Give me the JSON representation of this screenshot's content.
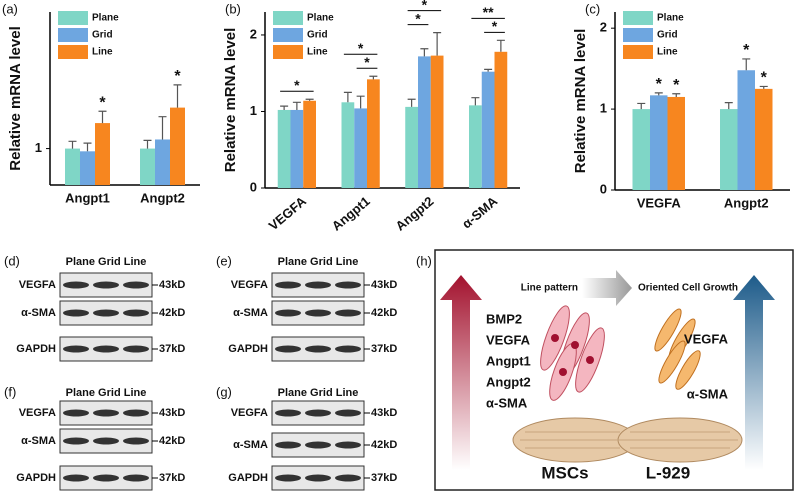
{
  "chart_data": [
    {
      "type": "bar",
      "panel_label": "(a)",
      "y_label": "Relative mRNA level",
      "categories": [
        "Angpt1",
        "Angpt2"
      ],
      "ylim": [
        0.6,
        2.5
      ],
      "yticks": [
        1
      ],
      "series": [
        {
          "name": "Plane",
          "color": "#7fd6c6",
          "values": [
            1.0,
            1.0
          ],
          "errors": [
            0.08,
            0.09
          ],
          "significance": [
            null,
            null
          ]
        },
        {
          "name": "Grid",
          "color": "#6ea6e0",
          "values": [
            0.97,
            1.1
          ],
          "errors": [
            0.09,
            0.25
          ],
          "significance": [
            null,
            null
          ]
        },
        {
          "name": "Line",
          "color": "#f7861f",
          "values": [
            1.28,
            1.45
          ],
          "errors": [
            0.13,
            0.25
          ],
          "significance": [
            "*",
            "*"
          ]
        }
      ]
    },
    {
      "type": "bar",
      "panel_label": "(b)",
      "y_label": "Relative mRNA level",
      "categories": [
        "VEGFA",
        "Angpt1",
        "Angpt2",
        "α-SMA"
      ],
      "ylim": [
        0,
        2.3
      ],
      "yticks": [
        0,
        1,
        2
      ],
      "series": [
        {
          "name": "Plane",
          "color": "#7fd6c6",
          "values": [
            1.02,
            1.12,
            1.06,
            1.08
          ],
          "errors": [
            0.05,
            0.13,
            0.1,
            0.1
          ]
        },
        {
          "name": "Grid",
          "color": "#6ea6e0",
          "values": [
            1.02,
            1.04,
            1.72,
            1.52
          ],
          "errors": [
            0.1,
            0.16,
            0.1,
            0.03
          ]
        },
        {
          "name": "Line",
          "color": "#f7861f",
          "values": [
            1.14,
            1.42,
            1.73,
            1.78
          ],
          "errors": [
            0.02,
            0.04,
            0.3,
            0.15
          ]
        }
      ],
      "comparisons": [
        {
          "group": "VEGFA",
          "from": "Plane",
          "to": "Line",
          "label": "*"
        },
        {
          "group": "Angpt1",
          "from": "Grid",
          "to": "Line",
          "label": "*"
        },
        {
          "group": "Angpt1",
          "from": "Plane",
          "to": "Line",
          "label": "*"
        },
        {
          "group": "Angpt2",
          "from": "Plane",
          "to": "Grid",
          "label": "*"
        },
        {
          "group": "Angpt2",
          "from": "Plane",
          "to": "Line",
          "label": "*"
        },
        {
          "group": "α-SMA",
          "from": "Grid",
          "to": "Line",
          "label": "*"
        },
        {
          "group": "α-SMA",
          "from": "Plane",
          "to": "Line",
          "label": "**"
        }
      ]
    },
    {
      "type": "bar",
      "panel_label": "(c)",
      "y_label": "Relative mRNA level",
      "categories": [
        "VEGFA",
        "Angpt2"
      ],
      "ylim": [
        0,
        2.2
      ],
      "yticks": [
        0,
        1,
        2
      ],
      "series": [
        {
          "name": "Plane",
          "color": "#7fd6c6",
          "values": [
            1.0,
            1.0
          ],
          "errors": [
            0.07,
            0.08
          ],
          "significance": [
            null,
            null
          ]
        },
        {
          "name": "Grid",
          "color": "#6ea6e0",
          "values": [
            1.17,
            1.48
          ],
          "errors": [
            0.03,
            0.14
          ],
          "significance": [
            "*",
            "*"
          ]
        },
        {
          "name": "Line",
          "color": "#f7861f",
          "values": [
            1.15,
            1.25
          ],
          "errors": [
            0.04,
            0.03
          ],
          "significance": [
            "*",
            "*"
          ]
        }
      ]
    }
  ],
  "blots": [
    {
      "panel_label": "(d)",
      "lanes": "Plane Grid Line",
      "rows": [
        {
          "name": "VEGFA",
          "size": "43kD"
        },
        {
          "name": "α-SMA",
          "size": "42kD"
        },
        {
          "name": "GAPDH",
          "size": "37kD"
        }
      ]
    },
    {
      "panel_label": "(e)",
      "lanes": "Plane Grid Line",
      "rows": [
        {
          "name": "VEGFA",
          "size": "43kD"
        },
        {
          "name": "α-SMA",
          "size": "42kD"
        },
        {
          "name": "GAPDH",
          "size": "37kD"
        }
      ]
    },
    {
      "panel_label": "(f)",
      "lanes": "Plane Grid Line",
      "rows": [
        {
          "name": "VEGFA",
          "size": "43kD"
        },
        {
          "name": "α-SMA",
          "size": "42kD"
        },
        {
          "name": "GAPDH",
          "size": "37kD"
        }
      ]
    },
    {
      "panel_label": "(g)",
      "lanes": "Plane Grid Line",
      "rows": [
        {
          "name": "VEGFA",
          "size": "43kD"
        },
        {
          "name": "α-SMA",
          "size": "42kD"
        },
        {
          "name": "GAPDH",
          "size": "37kD"
        }
      ]
    }
  ],
  "diagram": {
    "panel_label": "(h)",
    "left_caption": "Line pattern",
    "right_caption": "Oriented Cell Growth",
    "left_markers": [
      "BMP2",
      "VEGFA",
      "Angpt1",
      "Angpt2",
      "α-SMA"
    ],
    "right_markers": [
      "VEGFA",
      "α-SMA"
    ],
    "left_cells": "MSCs",
    "right_cells": "L-929"
  }
}
